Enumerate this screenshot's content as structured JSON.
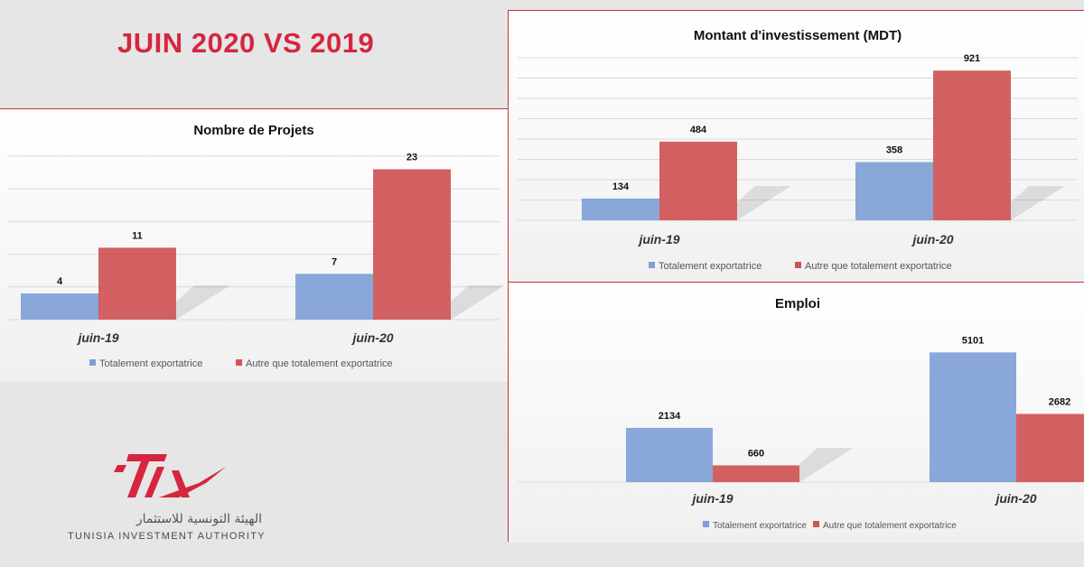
{
  "headline": "JUIN 2020 VS 2019",
  "logo": {
    "arabic": "الهيئة التونسية للاستثمار",
    "english": "TUNISIA INVESTMENT AUTHORITY",
    "mark": "TIA"
  },
  "colors": {
    "series_blue": "#7f9fd6",
    "series_red": "#cf5455",
    "headline": "#d6263f",
    "panel_border": "#c8343a"
  },
  "chart_data": [
    {
      "type": "bar",
      "title": "Nombre de Projets",
      "categories": [
        "juin-19",
        "juin-20"
      ],
      "series": [
        {
          "name": "Totalement exportatrice",
          "values": [
            4,
            7
          ]
        },
        {
          "name": "Autre que totalement exportatrice",
          "values": [
            11,
            23
          ]
        }
      ],
      "ylim": [
        0,
        25
      ],
      "grid": true,
      "legend_position": "bottom"
    },
    {
      "type": "bar",
      "title": "Montant d'investissement (MDT)",
      "categories": [
        "juin-19",
        "juin-20"
      ],
      "series": [
        {
          "name": "Totalement exportatrice",
          "values": [
            134,
            358
          ]
        },
        {
          "name": "Autre que totalement exportatrice",
          "values": [
            484,
            921
          ]
        }
      ],
      "ylim": [
        0,
        1000
      ],
      "grid": true,
      "legend_position": "bottom"
    },
    {
      "type": "bar",
      "title": "Emploi",
      "categories": [
        "juin-19",
        "juin-20"
      ],
      "series": [
        {
          "name": "Totalement exportatrice",
          "values": [
            2134,
            5101
          ]
        },
        {
          "name": "Autre que totalement exportatrice",
          "values": [
            660,
            2682
          ]
        }
      ],
      "ylim": [
        0,
        6000
      ],
      "grid": false,
      "legend_position": "bottom"
    }
  ]
}
